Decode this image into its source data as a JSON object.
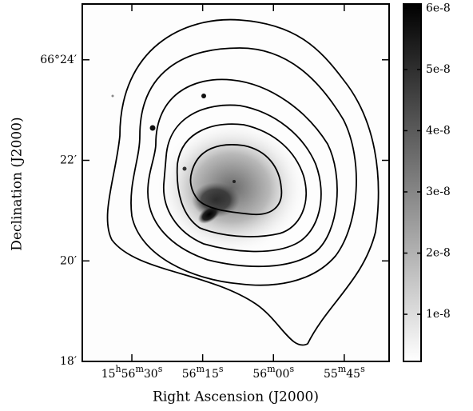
{
  "chart_data": {
    "type": "image",
    "x_label": "Right Ascension (J2000)",
    "y_label": "Declination (J2000)",
    "xlim": [
      3400.5,
      3335.5
    ],
    "xticks": [
      {
        "value": 3390,
        "label": "15h56m30s"
      },
      {
        "value": 3375,
        "label": "56m15s"
      },
      {
        "value": 3360,
        "label": "56m00s"
      },
      {
        "value": 3345,
        "label": "55m45s"
      }
    ],
    "ylim": [
      66.3,
      66.4185
    ],
    "yticks": [
      {
        "value": 66.4,
        "label": "66°24′"
      },
      {
        "value": 66.36667,
        "label": "22′"
      },
      {
        "value": 66.33333,
        "label": "20′"
      },
      {
        "value": 66.3,
        "label": "18′"
      }
    ],
    "colorbar": {
      "clim": [
        2.3e-09,
        6.07e-08
      ],
      "ticks": [
        {
          "value": 1e-08,
          "label": "1e-8"
        },
        {
          "value": 2e-08,
          "label": "2e-8"
        },
        {
          "value": 3e-08,
          "label": "3e-8"
        },
        {
          "value": 4e-08,
          "label": "4e-8"
        },
        {
          "value": 5e-08,
          "label": "5e-8"
        },
        {
          "value": 6e-08,
          "label": "6e-8"
        }
      ]
    }
  }
}
